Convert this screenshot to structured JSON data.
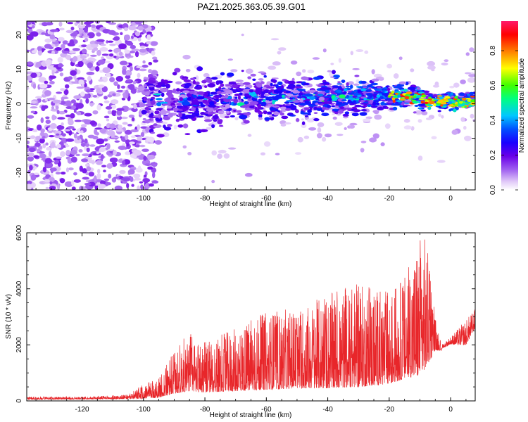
{
  "title": "PAZ1.2025.363.05.39.G01",
  "chart_data": [
    {
      "type": "heatmap",
      "xlabel": "Height of straight line (km)",
      "ylabel": "Frequency (Hz)",
      "xlim": [
        -138,
        8
      ],
      "ylim": [
        -25,
        24
      ],
      "xticks": [
        -120,
        -100,
        -80,
        -60,
        -40,
        -20,
        0
      ],
      "yticks": [
        -20,
        -10,
        0,
        10,
        20
      ],
      "colorbar": {
        "label": "Normalized spectral amplitude",
        "range": [
          0,
          0.97
        ],
        "ticks": [
          0.0,
          0.2,
          0.4,
          0.6,
          0.8
        ],
        "tick_labels": [
          "0.0",
          "0.2",
          "0.4",
          "0.6",
          "0.8"
        ],
        "colormap": [
          "#ffffff",
          "#e0c8f8",
          "#a060f0",
          "#6a00e8",
          "#1a00ff",
          "#0050ff",
          "#00c8ff",
          "#00ff80",
          "#40ff00",
          "#ffff00",
          "#ff8000",
          "#ff0000",
          "#ff1a6a"
        ]
      },
      "description_of_signal": "Scattered low-amplitude blobs for heights below -100 km spanning full frequency range; concentrated band near 0-5 Hz from -100 to 8 km with amplitude increasing toward 0 km"
    },
    {
      "type": "line",
      "xlabel": "Height of straight line (km)",
      "ylabel": "SNR (10 * v/v)",
      "xlim": [
        -138,
        8
      ],
      "ylim": [
        0,
        6000
      ],
      "xticks": [
        -120,
        -100,
        -80,
        -60,
        -40,
        -20,
        0
      ],
      "yticks": [
        0,
        2000,
        4000,
        6000
      ],
      "series": [
        {
          "name": "SNR",
          "color": "#e8262a",
          "envelope_x": [
            -138,
            -120,
            -105,
            -100,
            -95,
            -90,
            -85,
            -80,
            -70,
            -60,
            -50,
            -40,
            -30,
            -20,
            -15,
            -10,
            -8,
            -5,
            -3,
            0,
            5,
            8
          ],
          "envelope_y_max": [
            150,
            150,
            220,
            600,
            800,
            1800,
            2500,
            2100,
            2600,
            3200,
            3300,
            3800,
            4200,
            3900,
            4500,
            6000,
            5900,
            3000,
            2000,
            2300,
            2900,
            3300
          ],
          "envelope_y_min": [
            50,
            60,
            70,
            80,
            120,
            250,
            350,
            300,
            350,
            400,
            450,
            450,
            500,
            600,
            800,
            900,
            1200,
            1800,
            1800,
            1900,
            1600,
            2300
          ]
        }
      ]
    }
  ]
}
